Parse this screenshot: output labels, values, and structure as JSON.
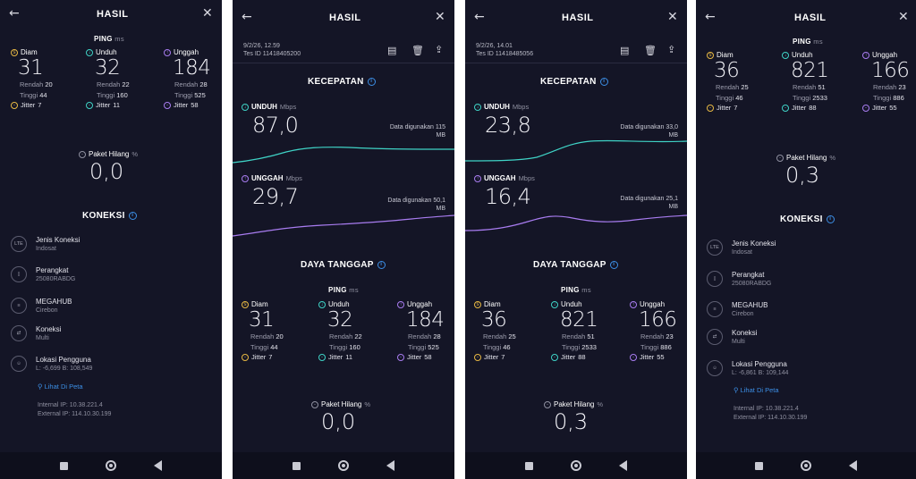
{
  "panels": [
    {
      "header": {
        "title": "HASIL"
      },
      "ping": {
        "label": "PING",
        "unit": "ms",
        "diam": {
          "label": "Diam",
          "value": "31",
          "rendah": "20",
          "tinggi": "44",
          "jitter": "7"
        },
        "unduh": {
          "label": "Unduh",
          "value": "32",
          "rendah": "22",
          "tinggi": "160",
          "jitter": "11"
        },
        "unggah": {
          "label": "Unggah",
          "value": "184",
          "rendah": "28",
          "tinggi": "525",
          "jitter": "58"
        }
      },
      "loss": {
        "label": "Paket Hilang",
        "unit": "%",
        "value": "0,0"
      },
      "koneksi": {
        "title": "KONEKSI",
        "items": [
          {
            "icon": "LTE",
            "title": "Jenis Koneksi",
            "sub": "Indosat"
          },
          {
            "icon": "phone-icon",
            "title": "Perangkat",
            "sub": "25080RABDG"
          },
          {
            "icon": "server-icon",
            "title": "MEGAHUB",
            "sub": "Cirebon"
          },
          {
            "icon": "arrows-icon",
            "title": "Koneksi",
            "sub": "Multi"
          },
          {
            "icon": "user-icon",
            "title": "Lokasi Pengguna",
            "sub": "L: -6,699 B: 108,549"
          }
        ],
        "map_link": "Lihat Di Peta",
        "internal_ip": "Internal IP: 10.38.221.4",
        "external_ip": "External IP: 114.10.30.199"
      }
    },
    {
      "header": {
        "title": "HASIL",
        "date": "9/2/26, 12.59",
        "test_id": "Tes ID 11418405200"
      },
      "kecepatan": {
        "title": "KECEPATAN",
        "unduh": {
          "label": "UNDUH",
          "unit": "Mbps",
          "value": "87,0",
          "used": "Data digunakan 115",
          "used_unit": "MB"
        },
        "unggah": {
          "label": "UNGGAH",
          "unit": "Mbps",
          "value": "29,7",
          "used": "Data digunakan 50,1",
          "used_unit": "MB"
        }
      },
      "daya": {
        "title": "DAYA TANGGAP"
      },
      "ping": {
        "label": "PING",
        "unit": "ms",
        "diam": {
          "label": "Diam",
          "value": "31",
          "rendah": "20",
          "tinggi": "44",
          "jitter": "7"
        },
        "unduh": {
          "label": "Unduh",
          "value": "32",
          "rendah": "22",
          "tinggi": "160",
          "jitter": "11"
        },
        "unggah": {
          "label": "Unggah",
          "value": "184",
          "rendah": "28",
          "tinggi": "525",
          "jitter": "58"
        }
      },
      "loss": {
        "label": "Paket Hilang",
        "unit": "%",
        "value": "0,0"
      }
    },
    {
      "header": {
        "title": "HASIL",
        "date": "9/2/26, 14.01",
        "test_id": "Tes ID 11418485056"
      },
      "kecepatan": {
        "title": "KECEPATAN",
        "unduh": {
          "label": "UNDUH",
          "unit": "Mbps",
          "value": "23,8",
          "used": "Data digunakan 33,0",
          "used_unit": "MB"
        },
        "unggah": {
          "label": "UNGGAH",
          "unit": "Mbps",
          "value": "16,4",
          "used": "Data digunakan 25,1",
          "used_unit": "MB"
        }
      },
      "daya": {
        "title": "DAYA TANGGAP"
      },
      "ping": {
        "label": "PING",
        "unit": "ms",
        "diam": {
          "label": "Diam",
          "value": "36",
          "rendah": "25",
          "tinggi": "46",
          "jitter": "7"
        },
        "unduh": {
          "label": "Unduh",
          "value": "821",
          "rendah": "51",
          "tinggi": "2533",
          "jitter": "88"
        },
        "unggah": {
          "label": "Unggah",
          "value": "166",
          "rendah": "23",
          "tinggi": "886",
          "jitter": "55"
        }
      },
      "loss": {
        "label": "Paket Hilang",
        "unit": "%",
        "value": "0,3"
      }
    },
    {
      "header": {
        "title": "HASIL"
      },
      "ping": {
        "label": "PING",
        "unit": "ms",
        "diam": {
          "label": "Diam",
          "value": "36",
          "rendah": "25",
          "tinggi": "46",
          "jitter": "7"
        },
        "unduh": {
          "label": "Unduh",
          "value": "821",
          "rendah": "51",
          "tinggi": "2533",
          "jitter": "88"
        },
        "unggah": {
          "label": "Unggah",
          "value": "166",
          "rendah": "23",
          "tinggi": "886",
          "jitter": "55"
        }
      },
      "loss": {
        "label": "Paket Hilang",
        "unit": "%",
        "value": "0,3"
      },
      "koneksi": {
        "title": "KONEKSI",
        "items": [
          {
            "icon": "LTE",
            "title": "Jenis Koneksi",
            "sub": "Indosat"
          },
          {
            "icon": "phone-icon",
            "title": "Perangkat",
            "sub": "25080RABDG"
          },
          {
            "icon": "server-icon",
            "title": "MEGAHUB",
            "sub": "Cirebon"
          },
          {
            "icon": "arrows-icon",
            "title": "Koneksi",
            "sub": "Multi"
          },
          {
            "icon": "user-icon",
            "title": "Lokasi Pengguna",
            "sub": "L: -6,861 B: 109,144"
          }
        ],
        "map_link": "Lihat Di Peta",
        "internal_ip": "Internal IP: 10.38.221.4",
        "external_ip": "External IP: 114.10.30.199"
      }
    }
  ],
  "labels": {
    "rendah": "Rendah",
    "tinggi": "Tinggi",
    "jitter": "Jitter"
  },
  "colors": {
    "background": "#141526",
    "download": "#3fd3c6",
    "upload": "#a87cf0",
    "idle": "#e7b844",
    "link": "#3c8fe6"
  }
}
